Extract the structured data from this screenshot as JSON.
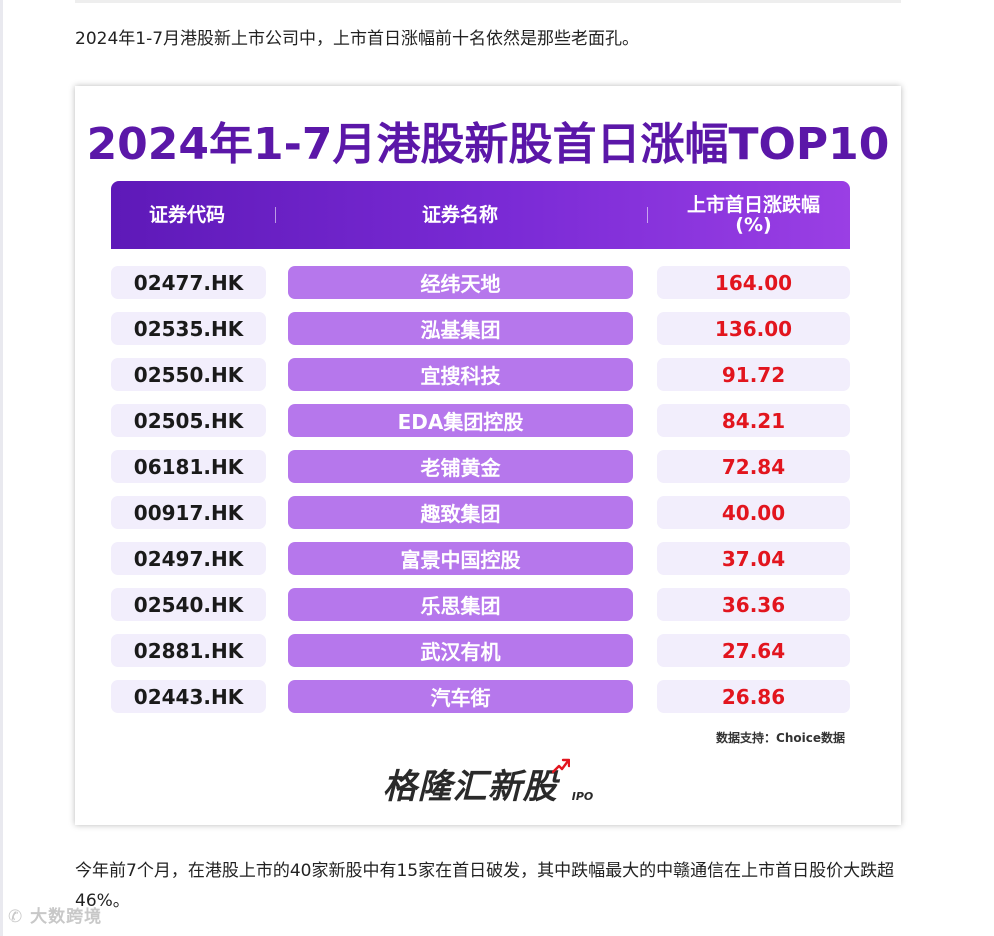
{
  "article": {
    "intro_text": "2024年1-7月港股新上市公司中，上市首日涨幅前十名依然是那些老面孔。",
    "outro_text": "今年前7个月，在港股上市的40家新股中有15家在首日破发，其中跌幅最大的中赣通信在上市首日股价大跌超46%。"
  },
  "card": {
    "title": "2024年1-7月港股新股首日涨幅TOP10",
    "headers": {
      "code": "证券代码",
      "name": "证券名称",
      "change": "上市首日涨跌幅\n(%)"
    },
    "rows": [
      {
        "code": "02477.HK",
        "name": "经纬天地",
        "change": "164.00"
      },
      {
        "code": "02535.HK",
        "name": "泓基集团",
        "change": "136.00"
      },
      {
        "code": "02550.HK",
        "name": "宜搜科技",
        "change": "91.72"
      },
      {
        "code": "02505.HK",
        "name": "EDA集团控股",
        "change": "84.21"
      },
      {
        "code": "06181.HK",
        "name": "老铺黄金",
        "change": "72.84"
      },
      {
        "code": "00917.HK",
        "name": "趣致集团",
        "change": "40.00"
      },
      {
        "code": "02497.HK",
        "name": "富景中国控股",
        "change": "37.04"
      },
      {
        "code": "02540.HK",
        "name": "乐思集团",
        "change": "36.36"
      },
      {
        "code": "02881.HK",
        "name": "武汉有机",
        "change": "27.64"
      },
      {
        "code": "02443.HK",
        "name": "汽车街",
        "change": "26.86"
      }
    ],
    "source_note": "数据支持：Choice数据",
    "logo_text": "格隆汇新股",
    "logo_sub": "IPO"
  },
  "watermark_text": "大数跨境",
  "colors": {
    "title": "#5b17a8",
    "header_gradient_start": "#5e19b8",
    "header_gradient_end": "#9a3fe4",
    "name_cell": "#b677ec",
    "light_cell": "#f2eefc",
    "change_text": "#e2151e",
    "logo_arrow": "#e2151e"
  }
}
